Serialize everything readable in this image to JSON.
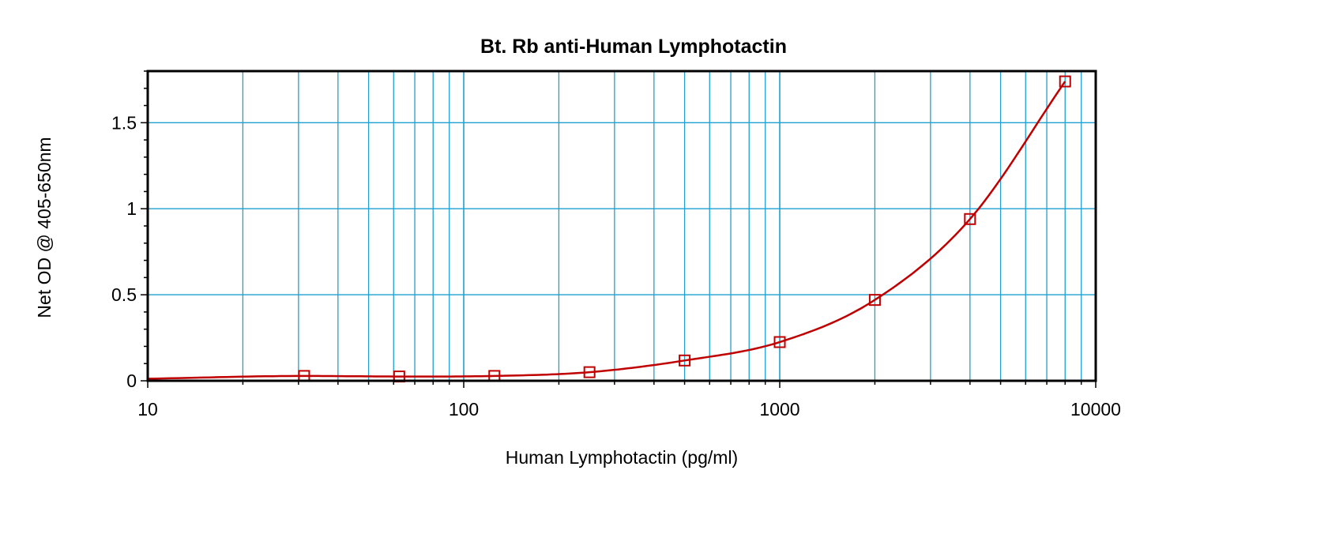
{
  "chart_data": {
    "type": "scatter",
    "title": "Bt. Rb anti-Human Lymphotactin",
    "xlabel": "Human Lymphotactin (pg/ml)",
    "ylabel": "Net OD @ 405-650nm",
    "x_scale": "log",
    "xlim": [
      10,
      10000
    ],
    "ylim": [
      0,
      1.8
    ],
    "x_ticks": [
      10,
      100,
      1000,
      10000
    ],
    "x_tick_labels": [
      "10",
      "100",
      "1000",
      "10000"
    ],
    "y_ticks": [
      0,
      0.5,
      1,
      1.5
    ],
    "y_tick_labels": [
      "0",
      "0.5",
      "1",
      "1.5"
    ],
    "grid": true,
    "series": [
      {
        "x": [
          31.25,
          62.5,
          125,
          250,
          500,
          1000,
          2000,
          4000,
          8000
        ],
        "y": [
          0.028,
          0.025,
          0.028,
          0.05,
          0.118,
          0.225,
          0.47,
          0.94,
          1.74
        ]
      }
    ],
    "colors": {
      "grid": "#1fa0d2",
      "series": "#c00000",
      "axes": "#000000"
    }
  }
}
